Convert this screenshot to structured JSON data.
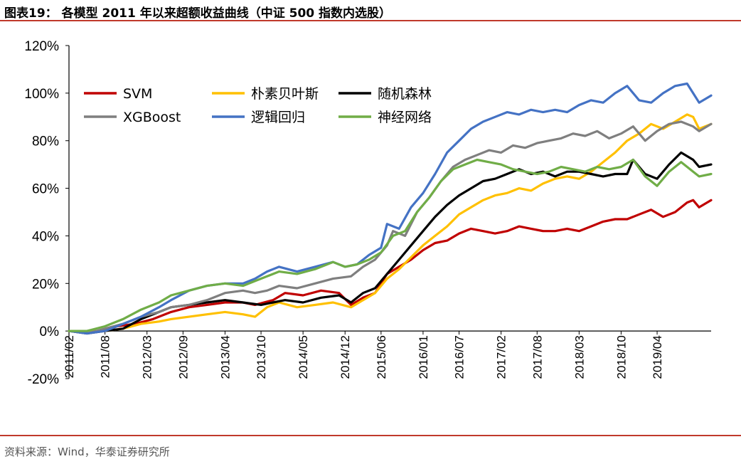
{
  "figure": {
    "title": "图表19：  各模型 2011 年以来超额收益曲线（中证 500 指数内选股）",
    "source": "资料来源：Wind，华泰证券研究所"
  },
  "chart_data": {
    "type": "line",
    "title": "",
    "xlabel": "",
    "ylabel": "",
    "ylim": [
      -0.2,
      1.2
    ],
    "y_ticks": [
      -0.2,
      0,
      0.2,
      0.4,
      0.6,
      0.8,
      1.0,
      1.2
    ],
    "y_tick_labels": [
      "-20%",
      "0%",
      "20%",
      "40%",
      "60%",
      "80%",
      "100%",
      "120%"
    ],
    "x_tick_labels": [
      "2011/02",
      "2011/08",
      "2012/03",
      "2012/09",
      "2013/04",
      "2013/10",
      "2014/05",
      "2014/12",
      "2015/06",
      "2016/01",
      "2016/07",
      "2017/02",
      "2017/08",
      "2018/03",
      "2018/10",
      "2019/04"
    ],
    "x_tick_pos": [
      0,
      6,
      13,
      19,
      26,
      32,
      39,
      46,
      52,
      59,
      65,
      72,
      78,
      85,
      92,
      98
    ],
    "x_max": 107,
    "legend_position": "top-left",
    "grid": false,
    "series": [
      {
        "name": "SVM",
        "color": "#c00000",
        "points": [
          [
            0,
            0
          ],
          [
            6,
            0
          ],
          [
            8,
            0.02
          ],
          [
            11,
            0.03
          ],
          [
            14,
            0.05
          ],
          [
            17,
            0.08
          ],
          [
            20,
            0.1
          ],
          [
            23,
            0.11
          ],
          [
            26,
            0.12
          ],
          [
            29,
            0.12
          ],
          [
            31,
            0.11
          ],
          [
            34,
            0.13
          ],
          [
            36,
            0.16
          ],
          [
            39,
            0.15
          ],
          [
            42,
            0.17
          ],
          [
            45,
            0.16
          ],
          [
            47,
            0.11
          ],
          [
            49,
            0.14
          ],
          [
            51,
            0.16
          ],
          [
            53,
            0.24
          ],
          [
            55,
            0.27
          ],
          [
            57,
            0.3
          ],
          [
            59,
            0.34
          ],
          [
            61,
            0.37
          ],
          [
            63,
            0.38
          ],
          [
            65,
            0.41
          ],
          [
            67,
            0.43
          ],
          [
            69,
            0.42
          ],
          [
            71,
            0.41
          ],
          [
            73,
            0.42
          ],
          [
            75,
            0.44
          ],
          [
            77,
            0.43
          ],
          [
            79,
            0.42
          ],
          [
            81,
            0.42
          ],
          [
            83,
            0.43
          ],
          [
            85,
            0.42
          ],
          [
            87,
            0.44
          ],
          [
            89,
            0.46
          ],
          [
            91,
            0.47
          ],
          [
            93,
            0.47
          ],
          [
            95,
            0.49
          ],
          [
            97,
            0.51
          ],
          [
            99,
            0.48
          ],
          [
            101,
            0.5
          ],
          [
            103,
            0.54
          ],
          [
            104,
            0.55
          ],
          [
            105,
            0.52
          ],
          [
            107,
            0.55
          ]
        ]
      },
      {
        "name": "朴素贝叶斯",
        "color": "#ffc000",
        "points": [
          [
            0,
            0
          ],
          [
            6,
            0
          ],
          [
            9,
            0.01
          ],
          [
            12,
            0.03
          ],
          [
            15,
            0.04
          ],
          [
            17,
            0.05
          ],
          [
            20,
            0.06
          ],
          [
            23,
            0.07
          ],
          [
            26,
            0.08
          ],
          [
            29,
            0.07
          ],
          [
            31,
            0.06
          ],
          [
            33,
            0.1
          ],
          [
            35,
            0.12
          ],
          [
            38,
            0.1
          ],
          [
            41,
            0.11
          ],
          [
            44,
            0.12
          ],
          [
            47,
            0.1
          ],
          [
            49,
            0.13
          ],
          [
            51,
            0.16
          ],
          [
            53,
            0.22
          ],
          [
            55,
            0.26
          ],
          [
            57,
            0.31
          ],
          [
            59,
            0.36
          ],
          [
            61,
            0.4
          ],
          [
            63,
            0.44
          ],
          [
            65,
            0.49
          ],
          [
            67,
            0.52
          ],
          [
            69,
            0.55
          ],
          [
            71,
            0.57
          ],
          [
            73,
            0.58
          ],
          [
            75,
            0.6
          ],
          [
            77,
            0.59
          ],
          [
            79,
            0.62
          ],
          [
            81,
            0.64
          ],
          [
            83,
            0.65
          ],
          [
            85,
            0.64
          ],
          [
            87,
            0.67
          ],
          [
            89,
            0.71
          ],
          [
            91,
            0.75
          ],
          [
            93,
            0.8
          ],
          [
            95,
            0.83
          ],
          [
            97,
            0.87
          ],
          [
            99,
            0.85
          ],
          [
            101,
            0.88
          ],
          [
            103,
            0.91
          ],
          [
            104,
            0.9
          ],
          [
            105,
            0.85
          ],
          [
            107,
            0.87
          ]
        ]
      },
      {
        "name": "随机森林",
        "color": "#000000",
        "points": [
          [
            0,
            0
          ],
          [
            3,
            -0.01
          ],
          [
            6,
            0
          ],
          [
            9,
            0.01
          ],
          [
            12,
            0.05
          ],
          [
            15,
            0.08
          ],
          [
            17,
            0.1
          ],
          [
            20,
            0.11
          ],
          [
            23,
            0.12
          ],
          [
            26,
            0.13
          ],
          [
            29,
            0.12
          ],
          [
            32,
            0.11
          ],
          [
            34,
            0.12
          ],
          [
            36,
            0.13
          ],
          [
            39,
            0.12
          ],
          [
            42,
            0.14
          ],
          [
            45,
            0.15
          ],
          [
            47,
            0.12
          ],
          [
            49,
            0.16
          ],
          [
            51,
            0.18
          ],
          [
            53,
            0.24
          ],
          [
            55,
            0.3
          ],
          [
            57,
            0.36
          ],
          [
            59,
            0.42
          ],
          [
            61,
            0.48
          ],
          [
            63,
            0.53
          ],
          [
            65,
            0.57
          ],
          [
            67,
            0.6
          ],
          [
            69,
            0.63
          ],
          [
            71,
            0.64
          ],
          [
            73,
            0.66
          ],
          [
            75,
            0.68
          ],
          [
            77,
            0.66
          ],
          [
            79,
            0.67
          ],
          [
            81,
            0.65
          ],
          [
            83,
            0.67
          ],
          [
            85,
            0.67
          ],
          [
            87,
            0.66
          ],
          [
            89,
            0.65
          ],
          [
            91,
            0.66
          ],
          [
            93,
            0.66
          ],
          [
            94,
            0.72
          ],
          [
            96,
            0.66
          ],
          [
            98,
            0.64
          ],
          [
            100,
            0.7
          ],
          [
            102,
            0.75
          ],
          [
            104,
            0.72
          ],
          [
            105,
            0.69
          ],
          [
            107,
            0.7
          ]
        ]
      },
      {
        "name": "XGBoost",
        "color": "#7f7f7f",
        "points": [
          [
            0,
            0
          ],
          [
            3,
            -0.01
          ],
          [
            6,
            0.01
          ],
          [
            9,
            0.03
          ],
          [
            12,
            0.06
          ],
          [
            15,
            0.08
          ],
          [
            17,
            0.1
          ],
          [
            20,
            0.11
          ],
          [
            23,
            0.13
          ],
          [
            26,
            0.16
          ],
          [
            29,
            0.17
          ],
          [
            31,
            0.16
          ],
          [
            33,
            0.17
          ],
          [
            35,
            0.19
          ],
          [
            38,
            0.18
          ],
          [
            41,
            0.2
          ],
          [
            44,
            0.22
          ],
          [
            47,
            0.23
          ],
          [
            49,
            0.27
          ],
          [
            51,
            0.3
          ],
          [
            53,
            0.36
          ],
          [
            54,
            0.42
          ],
          [
            56,
            0.4
          ],
          [
            58,
            0.5
          ],
          [
            60,
            0.56
          ],
          [
            62,
            0.63
          ],
          [
            64,
            0.69
          ],
          [
            66,
            0.72
          ],
          [
            68,
            0.74
          ],
          [
            70,
            0.76
          ],
          [
            72,
            0.75
          ],
          [
            74,
            0.78
          ],
          [
            76,
            0.77
          ],
          [
            78,
            0.79
          ],
          [
            80,
            0.8
          ],
          [
            82,
            0.81
          ],
          [
            84,
            0.83
          ],
          [
            86,
            0.82
          ],
          [
            88,
            0.84
          ],
          [
            90,
            0.81
          ],
          [
            92,
            0.83
          ],
          [
            94,
            0.86
          ],
          [
            96,
            0.8
          ],
          [
            98,
            0.84
          ],
          [
            100,
            0.87
          ],
          [
            102,
            0.88
          ],
          [
            104,
            0.86
          ],
          [
            105,
            0.84
          ],
          [
            107,
            0.87
          ]
        ]
      },
      {
        "name": "逻辑回归",
        "color": "#4472c4",
        "points": [
          [
            0,
            0
          ],
          [
            3,
            -0.01
          ],
          [
            6,
            0
          ],
          [
            9,
            0.03
          ],
          [
            12,
            0.06
          ],
          [
            15,
            0.1
          ],
          [
            17,
            0.13
          ],
          [
            20,
            0.17
          ],
          [
            23,
            0.19
          ],
          [
            26,
            0.2
          ],
          [
            29,
            0.2
          ],
          [
            31,
            0.22
          ],
          [
            33,
            0.25
          ],
          [
            35,
            0.27
          ],
          [
            38,
            0.25
          ],
          [
            41,
            0.27
          ],
          [
            44,
            0.29
          ],
          [
            46,
            0.27
          ],
          [
            48,
            0.28
          ],
          [
            50,
            0.32
          ],
          [
            52,
            0.35
          ],
          [
            53,
            0.45
          ],
          [
            55,
            0.43
          ],
          [
            57,
            0.52
          ],
          [
            59,
            0.58
          ],
          [
            61,
            0.66
          ],
          [
            63,
            0.75
          ],
          [
            65,
            0.8
          ],
          [
            67,
            0.85
          ],
          [
            69,
            0.88
          ],
          [
            71,
            0.9
          ],
          [
            73,
            0.92
          ],
          [
            75,
            0.91
          ],
          [
            77,
            0.93
          ],
          [
            79,
            0.92
          ],
          [
            81,
            0.93
          ],
          [
            83,
            0.92
          ],
          [
            85,
            0.95
          ],
          [
            87,
            0.97
          ],
          [
            89,
            0.96
          ],
          [
            91,
            1.0
          ],
          [
            93,
            1.03
          ],
          [
            95,
            0.97
          ],
          [
            97,
            0.96
          ],
          [
            99,
            1.0
          ],
          [
            101,
            1.03
          ],
          [
            103,
            1.04
          ],
          [
            104,
            1.0
          ],
          [
            105,
            0.96
          ],
          [
            107,
            0.99
          ]
        ]
      },
      {
        "name": "神经网络",
        "color": "#70ad47",
        "points": [
          [
            0,
            0
          ],
          [
            3,
            0
          ],
          [
            6,
            0.02
          ],
          [
            9,
            0.05
          ],
          [
            12,
            0.09
          ],
          [
            15,
            0.12
          ],
          [
            17,
            0.15
          ],
          [
            20,
            0.17
          ],
          [
            23,
            0.19
          ],
          [
            26,
            0.2
          ],
          [
            29,
            0.19
          ],
          [
            31,
            0.21
          ],
          [
            33,
            0.23
          ],
          [
            35,
            0.25
          ],
          [
            38,
            0.24
          ],
          [
            41,
            0.26
          ],
          [
            44,
            0.29
          ],
          [
            46,
            0.27
          ],
          [
            48,
            0.28
          ],
          [
            50,
            0.3
          ],
          [
            52,
            0.33
          ],
          [
            54,
            0.4
          ],
          [
            56,
            0.42
          ],
          [
            58,
            0.5
          ],
          [
            60,
            0.56
          ],
          [
            62,
            0.63
          ],
          [
            64,
            0.68
          ],
          [
            66,
            0.7
          ],
          [
            68,
            0.72
          ],
          [
            70,
            0.71
          ],
          [
            72,
            0.7
          ],
          [
            74,
            0.68
          ],
          [
            76,
            0.67
          ],
          [
            78,
            0.66
          ],
          [
            80,
            0.67
          ],
          [
            82,
            0.69
          ],
          [
            84,
            0.68
          ],
          [
            86,
            0.67
          ],
          [
            88,
            0.69
          ],
          [
            90,
            0.68
          ],
          [
            92,
            0.69
          ],
          [
            94,
            0.72
          ],
          [
            96,
            0.65
          ],
          [
            98,
            0.61
          ],
          [
            100,
            0.67
          ],
          [
            102,
            0.71
          ],
          [
            104,
            0.67
          ],
          [
            105,
            0.65
          ],
          [
            107,
            0.66
          ]
        ]
      }
    ]
  }
}
